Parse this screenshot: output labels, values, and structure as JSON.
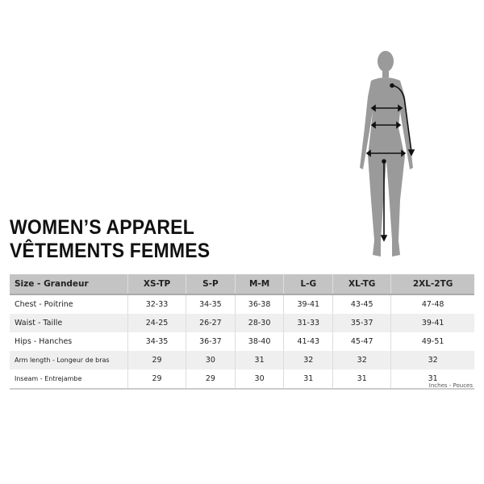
{
  "title": {
    "line1": "WOMEN’S APPAREL",
    "line2": "VÊTEMENTS FEMMES"
  },
  "table": {
    "headers": [
      "Size - Grandeur",
      "XS-TP",
      "S-P",
      "M-M",
      "L-G",
      "XL-TG",
      "2XL-2TG"
    ],
    "rows": [
      {
        "label": "Chest - Poitrine",
        "values": [
          "32-33",
          "34-35",
          "36-38",
          "39-41",
          "43-45",
          "47-48"
        ]
      },
      {
        "label": "Waist - Taille",
        "values": [
          "24-25",
          "26-27",
          "28-30",
          "31-33",
          "35-37",
          "39-41"
        ]
      },
      {
        "label": "Hips - Hanches",
        "values": [
          "34-35",
          "36-37",
          "38-40",
          "41-43",
          "45-47",
          "49-51"
        ]
      },
      {
        "label": "Arm length - Longeur de bras",
        "values": [
          "29",
          "30",
          "31",
          "32",
          "32",
          "32"
        ]
      },
      {
        "label": "Inseam - Entrejambe",
        "values": [
          "29",
          "29",
          "30",
          "31",
          "31",
          "31"
        ]
      }
    ]
  },
  "units": "Inches - Pouces",
  "colors": {
    "header_bg": "#c4c4c4",
    "silhouette": "#9a9a9a",
    "measure_lines": "#111111"
  }
}
